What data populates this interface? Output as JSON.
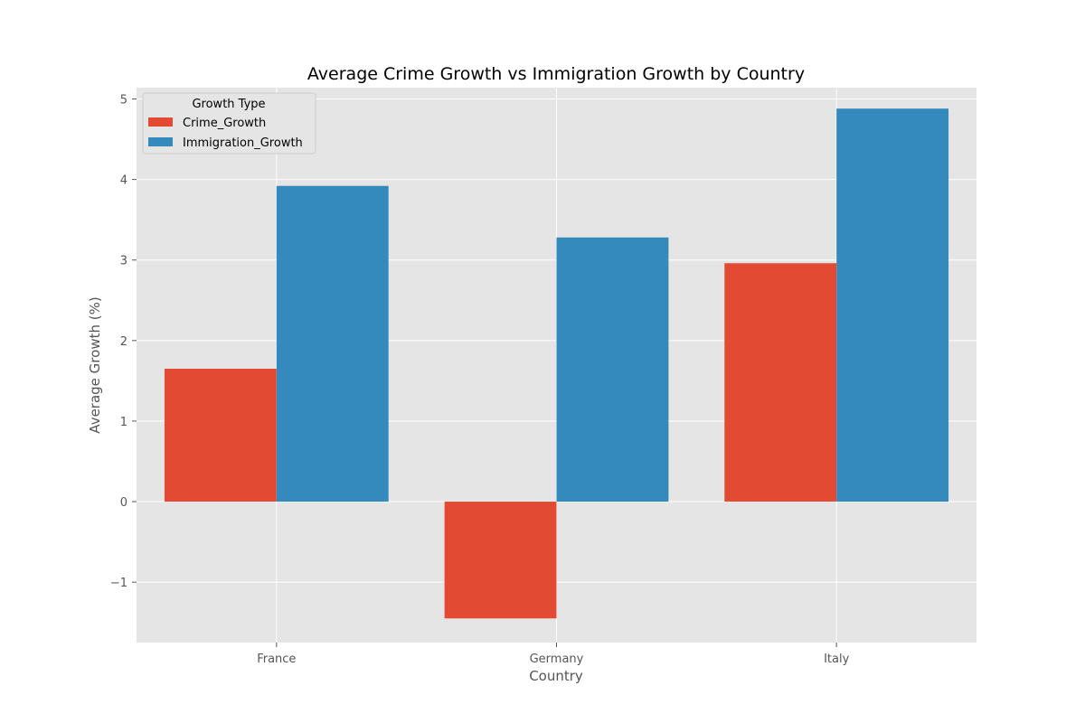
{
  "chart_data": {
    "type": "bar",
    "title": "Average Crime Growth vs Immigration Growth by Country",
    "xlabel": "Country",
    "ylabel": "Average Growth (%)",
    "categories": [
      "France",
      "Germany",
      "Italy"
    ],
    "series": [
      {
        "name": "Crime_Growth",
        "color": "#E24A33",
        "values": [
          1.65,
          -1.45,
          2.96
        ]
      },
      {
        "name": "Immigration_Growth",
        "color": "#348ABD",
        "values": [
          3.92,
          3.28,
          4.88
        ]
      }
    ],
    "ylim": [
      -1.75,
      5.14
    ],
    "yticks": [
      -1,
      0,
      1,
      2,
      3,
      4,
      5
    ],
    "ytick_labels": [
      "−1",
      "0",
      "1",
      "2",
      "3",
      "4",
      "5"
    ],
    "grid": true,
    "legend": {
      "title": "Growth Type",
      "placement": "top-left"
    },
    "colors": {
      "plot_background": "#E5E5E5",
      "grid": "#FFFFFF"
    }
  }
}
